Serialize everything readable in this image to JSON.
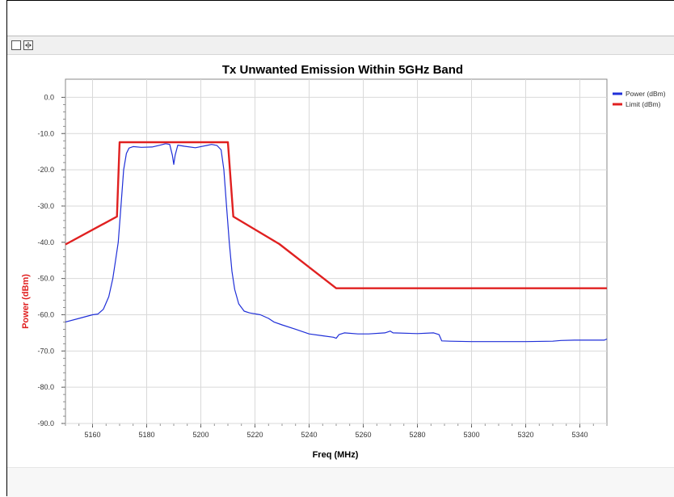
{
  "window": {
    "toolbar_buttons": [
      {
        "icon": "square-icon"
      },
      {
        "icon": "split-arrows-icon"
      }
    ]
  },
  "chart_data": {
    "type": "line",
    "title": "Tx Unwanted Emission Within 5GHz Band",
    "xlabel": "Freq (MHz)",
    "ylabel": "Power (dBm)",
    "xlim": [
      5150,
      5350
    ],
    "ylim": [
      -90,
      5
    ],
    "x_ticks": [
      5160,
      5180,
      5200,
      5220,
      5240,
      5260,
      5280,
      5300,
      5320,
      5340
    ],
    "y_ticks": [
      0,
      -10,
      -20,
      -30,
      -40,
      -50,
      -60,
      -70,
      -80,
      -90
    ],
    "y_tick_labels": [
      "0.0",
      "-10.0",
      "-20.0",
      "-30.0",
      "-40.0",
      "-50.0",
      "-60.0",
      "-70.0",
      "-80.0",
      "-90.0"
    ],
    "grid": true,
    "legend_position": "top-right",
    "series": [
      {
        "name": "Power (dBm)",
        "color": "#1f2fd8",
        "points": [
          [
            5150,
            -62.0
          ],
          [
            5155,
            -61.0
          ],
          [
            5160,
            -60.0
          ],
          [
            5162,
            -59.8
          ],
          [
            5164,
            -58.5
          ],
          [
            5166,
            -55.0
          ],
          [
            5167.5,
            -50.0
          ],
          [
            5168.5,
            -45.0
          ],
          [
            5169.5,
            -40.0
          ],
          [
            5170.5,
            -30.0
          ],
          [
            5171.5,
            -20.0
          ],
          [
            5172.5,
            -15.5
          ],
          [
            5173.5,
            -14.0
          ],
          [
            5175,
            -13.6
          ],
          [
            5178,
            -13.8
          ],
          [
            5182,
            -13.7
          ],
          [
            5185,
            -13.2
          ],
          [
            5187,
            -12.8
          ],
          [
            5188.5,
            -13.0
          ],
          [
            5189.5,
            -16.0
          ],
          [
            5190,
            -18.5
          ],
          [
            5190.5,
            -16.0
          ],
          [
            5191.5,
            -13.2
          ],
          [
            5194,
            -13.5
          ],
          [
            5198,
            -13.9
          ],
          [
            5202,
            -13.3
          ],
          [
            5204,
            -13.0
          ],
          [
            5206,
            -13.3
          ],
          [
            5207.5,
            -14.5
          ],
          [
            5208.5,
            -20.0
          ],
          [
            5209.5,
            -30.0
          ],
          [
            5210.5,
            -40.0
          ],
          [
            5211.5,
            -48.0
          ],
          [
            5212.5,
            -53.0
          ],
          [
            5214,
            -57.0
          ],
          [
            5216,
            -59.0
          ],
          [
            5218,
            -59.5
          ],
          [
            5222,
            -60.0
          ],
          [
            5225,
            -61.0
          ],
          [
            5227,
            -62.0
          ],
          [
            5230,
            -62.8
          ],
          [
            5235,
            -64.0
          ],
          [
            5240,
            -65.3
          ],
          [
            5245,
            -65.8
          ],
          [
            5249,
            -66.2
          ],
          [
            5250,
            -66.5
          ],
          [
            5251,
            -65.5
          ],
          [
            5253,
            -65.0
          ],
          [
            5258,
            -65.3
          ],
          [
            5262,
            -65.3
          ],
          [
            5268,
            -65.0
          ],
          [
            5270,
            -64.5
          ],
          [
            5271,
            -65.0
          ],
          [
            5280,
            -65.2
          ],
          [
            5286,
            -65.0
          ],
          [
            5288,
            -65.5
          ],
          [
            5289,
            -67.2
          ],
          [
            5292,
            -67.3
          ],
          [
            5300,
            -67.4
          ],
          [
            5310,
            -67.4
          ],
          [
            5320,
            -67.4
          ],
          [
            5330,
            -67.3
          ],
          [
            5333,
            -67.1
          ],
          [
            5338,
            -67.0
          ],
          [
            5345,
            -67.0
          ],
          [
            5349,
            -67.0
          ],
          [
            5350,
            -66.7
          ]
        ]
      },
      {
        "name": "Limit (dBm)",
        "color": "#e02020",
        "points": [
          [
            5150,
            -40.6
          ],
          [
            5169,
            -32.9
          ],
          [
            5170,
            -12.4
          ],
          [
            5210,
            -12.4
          ],
          [
            5212,
            -32.9
          ],
          [
            5229,
            -40.5
          ],
          [
            5250,
            -52.7
          ],
          [
            5350,
            -52.7
          ]
        ]
      }
    ]
  }
}
